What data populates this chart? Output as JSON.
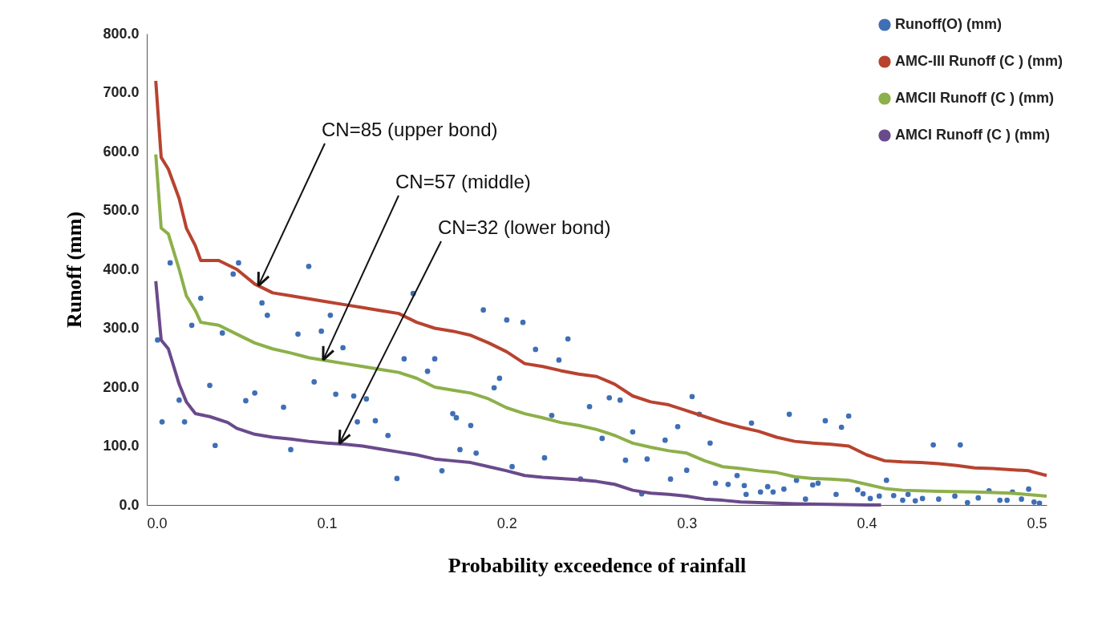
{
  "chart_data": {
    "type": "line",
    "xlabel": "Probability exceedence of rainfall",
    "ylabel": "Runoff (mm)",
    "xlim": [
      0,
      0.5
    ],
    "xticks": [
      {
        "value": 0,
        "label": "0.0"
      },
      0.1,
      0.2,
      0.3,
      0.4,
      0.5
    ],
    "ylim": [
      0,
      800
    ],
    "yticks": [
      {
        "value": 0,
        "label": "0.0"
      },
      {
        "value": 100,
        "label": "100.0"
      },
      {
        "value": 200,
        "label": "200.0"
      },
      {
        "value": 300,
        "label": "300.0"
      },
      {
        "value": 400,
        "label": "400.0"
      },
      {
        "value": 500,
        "label": "500.0"
      },
      {
        "value": 600,
        "label": "600.0"
      },
      {
        "value": 700,
        "label": "700.0"
      },
      {
        "value": 800,
        "label": "800.0"
      }
    ],
    "grid": false,
    "legend": "top right",
    "line_style": "solid",
    "series": [
      {
        "name": "Runoff(O) (mm)",
        "type": "scatter",
        "marker": "circle",
        "color": "#3f6fb5",
        "x": [
          0.006,
          0.0085,
          0.013,
          0.018,
          0.021,
          0.025,
          0.03,
          0.035,
          0.038,
          0.042,
          0.048,
          0.051,
          0.055,
          0.06,
          0.064,
          0.067,
          0.076,
          0.08,
          0.084,
          0.09,
          0.093,
          0.097,
          0.102,
          0.105,
          0.109,
          0.115,
          0.117,
          0.122,
          0.127,
          0.134,
          0.139,
          0.143,
          0.148,
          0.156,
          0.16,
          0.164,
          0.17,
          0.172,
          0.174,
          0.18,
          0.183,
          0.187,
          0.193,
          0.196,
          0.2,
          0.203,
          0.209,
          0.216,
          0.221,
          0.225,
          0.229,
          0.234,
          0.241,
          0.246,
          0.253,
          0.257,
          0.263,
          0.266,
          0.27,
          0.275,
          0.278,
          0.288,
          0.291,
          0.295,
          0.3,
          0.303,
          0.307,
          0.313,
          0.316,
          0.323,
          0.328,
          0.332,
          0.333,
          0.336,
          0.341,
          0.345,
          0.348,
          0.354,
          0.357,
          0.361,
          0.366,
          0.37,
          0.373,
          0.377,
          0.383,
          0.386,
          0.39,
          0.395,
          0.398,
          0.402,
          0.407,
          0.411,
          0.415,
          0.42,
          0.423,
          0.427,
          0.431,
          0.437,
          0.44,
          0.449,
          0.452,
          0.456,
          0.462,
          0.468,
          0.474,
          0.478,
          0.481,
          0.486,
          0.49,
          0.493,
          0.496
        ],
        "values": [
          280,
          141,
          411,
          178,
          141,
          305,
          351,
          203,
          101,
          292,
          392,
          411,
          177,
          190,
          343,
          322,
          166,
          94,
          290,
          405,
          209,
          295,
          322,
          188,
          267,
          185,
          141,
          180,
          143,
          118,
          45,
          248,
          359,
          227,
          248,
          58,
          155,
          148,
          94,
          135,
          88,
          331,
          199,
          215,
          314,
          65,
          310,
          264,
          80,
          152,
          246,
          282,
          44,
          167,
          113,
          182,
          178,
          76,
          124,
          19,
          78,
          110,
          44,
          133,
          59,
          184,
          154,
          105,
          37,
          35,
          50,
          33,
          18,
          139,
          22,
          31,
          22,
          27,
          154,
          42,
          10,
          34,
          37,
          143,
          18,
          132,
          151,
          26,
          19,
          11,
          15,
          42,
          16,
          8,
          18,
          7,
          11,
          102,
          10,
          15,
          102,
          4,
          12,
          24,
          8,
          8,
          22,
          10,
          27,
          5,
          3
        ]
      },
      {
        "name": "AMC-III Runoff (C ) (mm)",
        "marker": "none",
        "color": "#b8432f",
        "x": [
          0.005,
          0.008,
          0.012,
          0.018,
          0.022,
          0.027,
          0.03,
          0.04,
          0.05,
          0.06,
          0.07,
          0.08,
          0.09,
          0.1,
          0.11,
          0.12,
          0.13,
          0.14,
          0.15,
          0.16,
          0.17,
          0.18,
          0.19,
          0.2,
          0.21,
          0.22,
          0.23,
          0.24,
          0.25,
          0.26,
          0.27,
          0.28,
          0.29,
          0.3,
          0.31,
          0.32,
          0.33,
          0.34,
          0.35,
          0.36,
          0.37,
          0.38,
          0.39,
          0.4,
          0.41,
          0.42,
          0.43,
          0.44,
          0.45,
          0.46,
          0.47,
          0.48,
          0.49,
          0.5
        ],
        "values": [
          720,
          590,
          570,
          520,
          470,
          440,
          415,
          415,
          400,
          375,
          360,
          355,
          350,
          345,
          340,
          335,
          330,
          325,
          310,
          300,
          295,
          288,
          275,
          260,
          240,
          235,
          228,
          222,
          218,
          205,
          185,
          175,
          170,
          160,
          150,
          140,
          132,
          125,
          115,
          108,
          105,
          103,
          100,
          85,
          75,
          73,
          72,
          70,
          67,
          63,
          62,
          60,
          58,
          50
        ]
      },
      {
        "name": "AMCII Runoff (C  ) (mm)",
        "marker": "none",
        "color": "#8db04a",
        "x": [
          0.005,
          0.008,
          0.012,
          0.018,
          0.022,
          0.027,
          0.03,
          0.04,
          0.05,
          0.06,
          0.07,
          0.08,
          0.09,
          0.1,
          0.11,
          0.12,
          0.13,
          0.14,
          0.15,
          0.16,
          0.17,
          0.18,
          0.19,
          0.2,
          0.21,
          0.22,
          0.23,
          0.24,
          0.25,
          0.26,
          0.27,
          0.28,
          0.29,
          0.3,
          0.31,
          0.32,
          0.33,
          0.34,
          0.35,
          0.36,
          0.37,
          0.38,
          0.39,
          0.4,
          0.41,
          0.42,
          0.44,
          0.46,
          0.48,
          0.5
        ],
        "values": [
          595,
          470,
          460,
          400,
          355,
          330,
          310,
          305,
          290,
          275,
          265,
          258,
          250,
          245,
          240,
          235,
          230,
          225,
          215,
          200,
          195,
          190,
          180,
          165,
          155,
          148,
          140,
          135,
          128,
          118,
          105,
          98,
          92,
          88,
          75,
          65,
          62,
          58,
          55,
          48,
          45,
          44,
          42,
          35,
          28,
          25,
          23,
          22,
          20,
          15
        ]
      },
      {
        "name": "AMCI Runoff (C ) (mm)",
        "marker": "none",
        "color": "#6a4a8c",
        "x": [
          0.005,
          0.008,
          0.012,
          0.018,
          0.022,
          0.027,
          0.035,
          0.045,
          0.05,
          0.06,
          0.07,
          0.08,
          0.09,
          0.1,
          0.11,
          0.12,
          0.13,
          0.14,
          0.15,
          0.16,
          0.17,
          0.18,
          0.19,
          0.2,
          0.21,
          0.22,
          0.23,
          0.24,
          0.25,
          0.26,
          0.27,
          0.28,
          0.29,
          0.3,
          0.31,
          0.32,
          0.33,
          0.34,
          0.35,
          0.36,
          0.38,
          0.4,
          0.408
        ],
        "values": [
          380,
          280,
          265,
          205,
          175,
          155,
          150,
          140,
          130,
          120,
          115,
          112,
          108,
          105,
          103,
          100,
          95,
          90,
          85,
          78,
          75,
          72,
          65,
          58,
          50,
          47,
          45,
          43,
          40,
          35,
          25,
          20,
          18,
          15,
          10,
          8,
          5,
          4,
          3,
          2,
          1,
          0,
          0
        ]
      }
    ],
    "annotations": [
      {
        "text": "CN=85 (upper bond)",
        "x": 0.062,
        "y": 372
      },
      {
        "text": "CN=57 (middle)",
        "x": 0.098,
        "y": 246
      },
      {
        "text": "CN=32 (lower bond)",
        "x": 0.107,
        "y": 104
      }
    ]
  }
}
